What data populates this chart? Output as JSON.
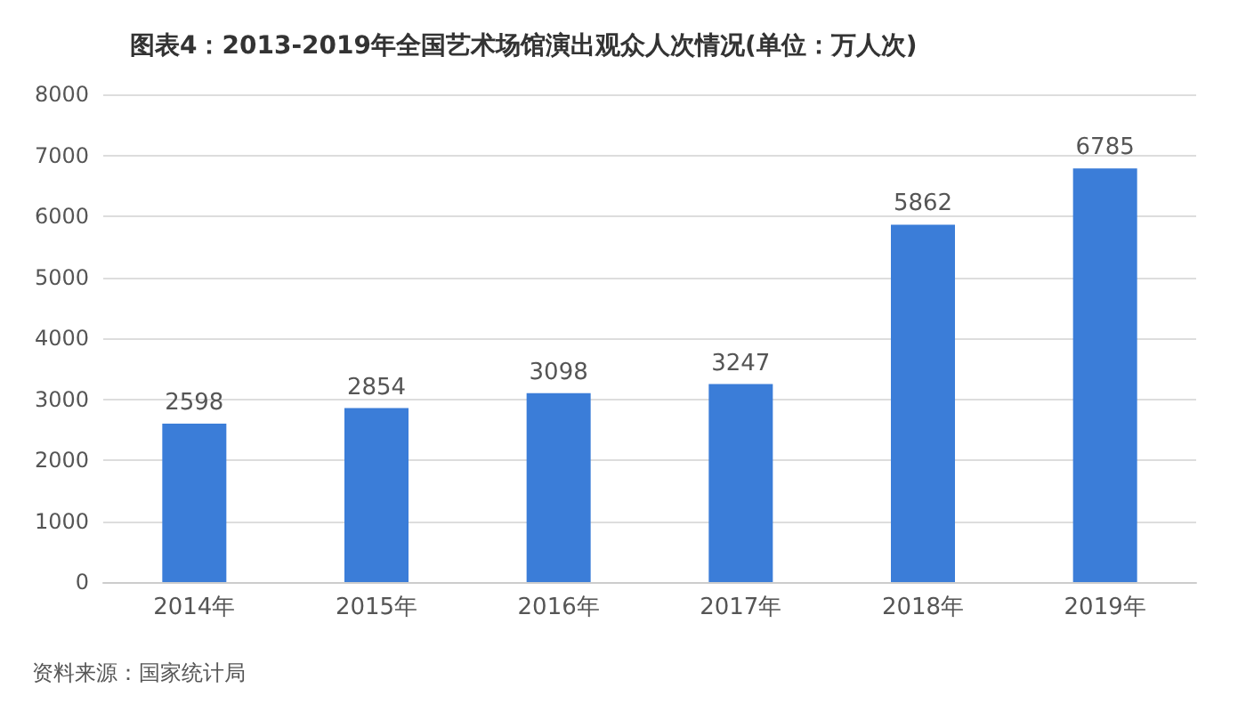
{
  "chart_data": {
    "type": "bar",
    "title": "图表4：2013-2019年全国艺术场馆演出观众人次情况(单位：万人次)",
    "categories": [
      "2014年",
      "2015年",
      "2016年",
      "2017年",
      "2018年",
      "2019年"
    ],
    "values": [
      2598,
      2854,
      3098,
      3247,
      5862,
      6785
    ],
    "color": "#3b7dd8",
    "ylim": [
      0,
      8000
    ],
    "yticks": [
      0,
      1000,
      2000,
      3000,
      4000,
      5000,
      6000,
      7000,
      8000
    ],
    "grid": "y",
    "data_labels": true,
    "annotations": [
      "资料来源：国家统计局"
    ]
  }
}
